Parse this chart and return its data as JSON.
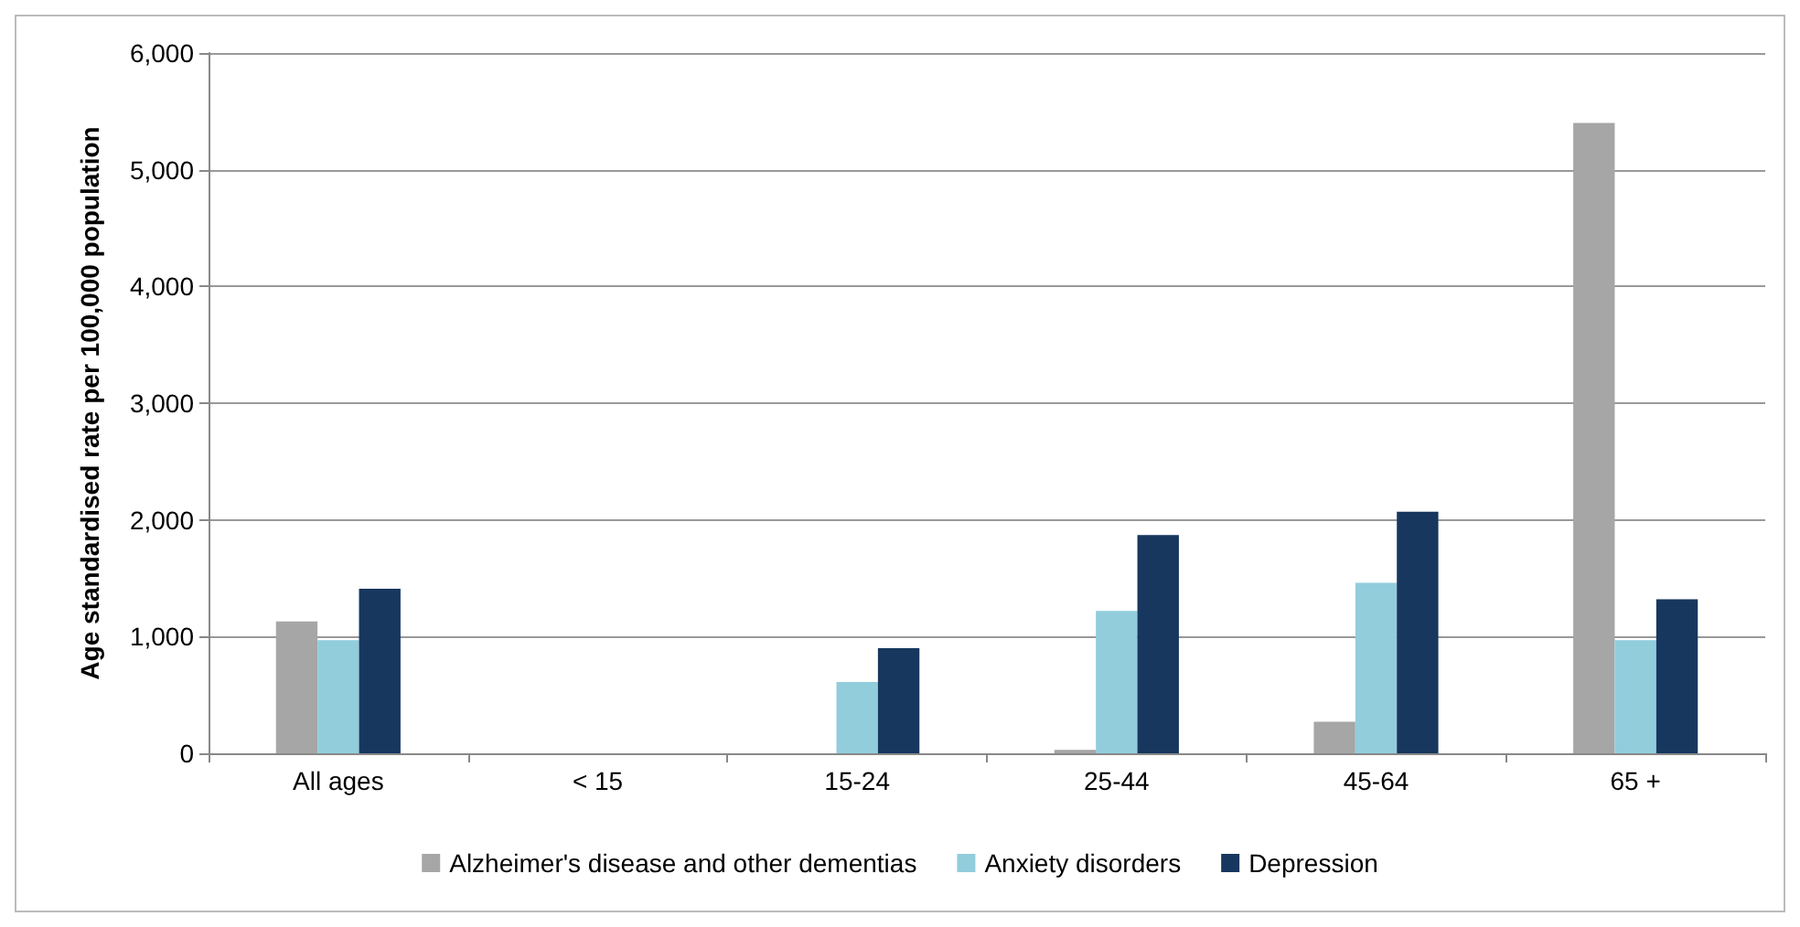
{
  "chart_data": {
    "type": "bar",
    "ylabel": "Age standardised rate per 100,000 population",
    "categories": [
      "All ages",
      "< 15",
      "15-24",
      "25-44",
      "45-64",
      "65 +"
    ],
    "series": [
      {
        "name": "Alzheimer's disease and other dementias",
        "color": "#a6a6a6",
        "values": [
          1130,
          0,
          0,
          30,
          270,
          5400
        ]
      },
      {
        "name": "Anxiety disorders",
        "color": "#92cddc",
        "values": [
          970,
          0,
          610,
          1220,
          1460,
          970
        ]
      },
      {
        "name": "Depression",
        "color": "#17375e",
        "values": [
          1410,
          0,
          900,
          1870,
          2070,
          1320
        ]
      }
    ],
    "ylim": [
      0,
      6000
    ],
    "yticks": [
      0,
      {
        "value": 1000,
        "label": "1,000"
      },
      {
        "value": 2000,
        "label": "2,000"
      },
      {
        "value": 3000,
        "label": "3,000"
      },
      {
        "value": 4000,
        "label": "4,000"
      },
      {
        "value": 5000,
        "label": "5,000"
      },
      {
        "value": 6000,
        "label": "6,000"
      }
    ],
    "grid": "y",
    "legend": "bottom"
  }
}
